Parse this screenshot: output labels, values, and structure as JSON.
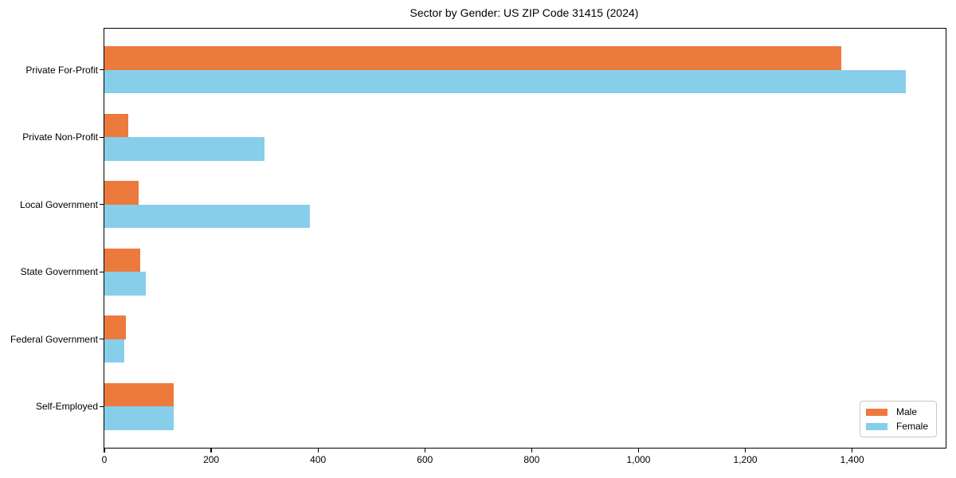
{
  "title": "Sector by Gender: US ZIP Code 31415 (2024)",
  "chart_data": {
    "type": "bar",
    "orientation": "horizontal",
    "title": "Sector by Gender: US ZIP Code 31415 (2024)",
    "categories": [
      "Private For-Profit",
      "Private Non-Profit",
      "Local Government",
      "State Government",
      "Federal Government",
      "Self-Employed"
    ],
    "series": [
      {
        "name": "Male",
        "color": "#EC7A3C",
        "values": [
          1380,
          45,
          64,
          67,
          40,
          130
        ]
      },
      {
        "name": "Female",
        "color": "#87CEEB",
        "values": [
          1500,
          300,
          385,
          77,
          37,
          130
        ]
      }
    ],
    "xlabel": "",
    "ylabel": "",
    "xlim": [
      0,
      1575
    ],
    "xticks": [
      0,
      200,
      400,
      600,
      800,
      1000,
      1200,
      1400
    ],
    "xtick_labels": [
      "0",
      "200",
      "400",
      "600",
      "800",
      "1,000",
      "1,200",
      "1,400"
    ],
    "grid": false,
    "legend": {
      "position": "lower right",
      "entries": [
        "Male",
        "Female"
      ]
    },
    "colors": {
      "male": "#EC7A3C",
      "female": "#87CEEB",
      "axis": "#000000",
      "background": "#ffffff",
      "legend_border": "#c8c8c8"
    }
  }
}
